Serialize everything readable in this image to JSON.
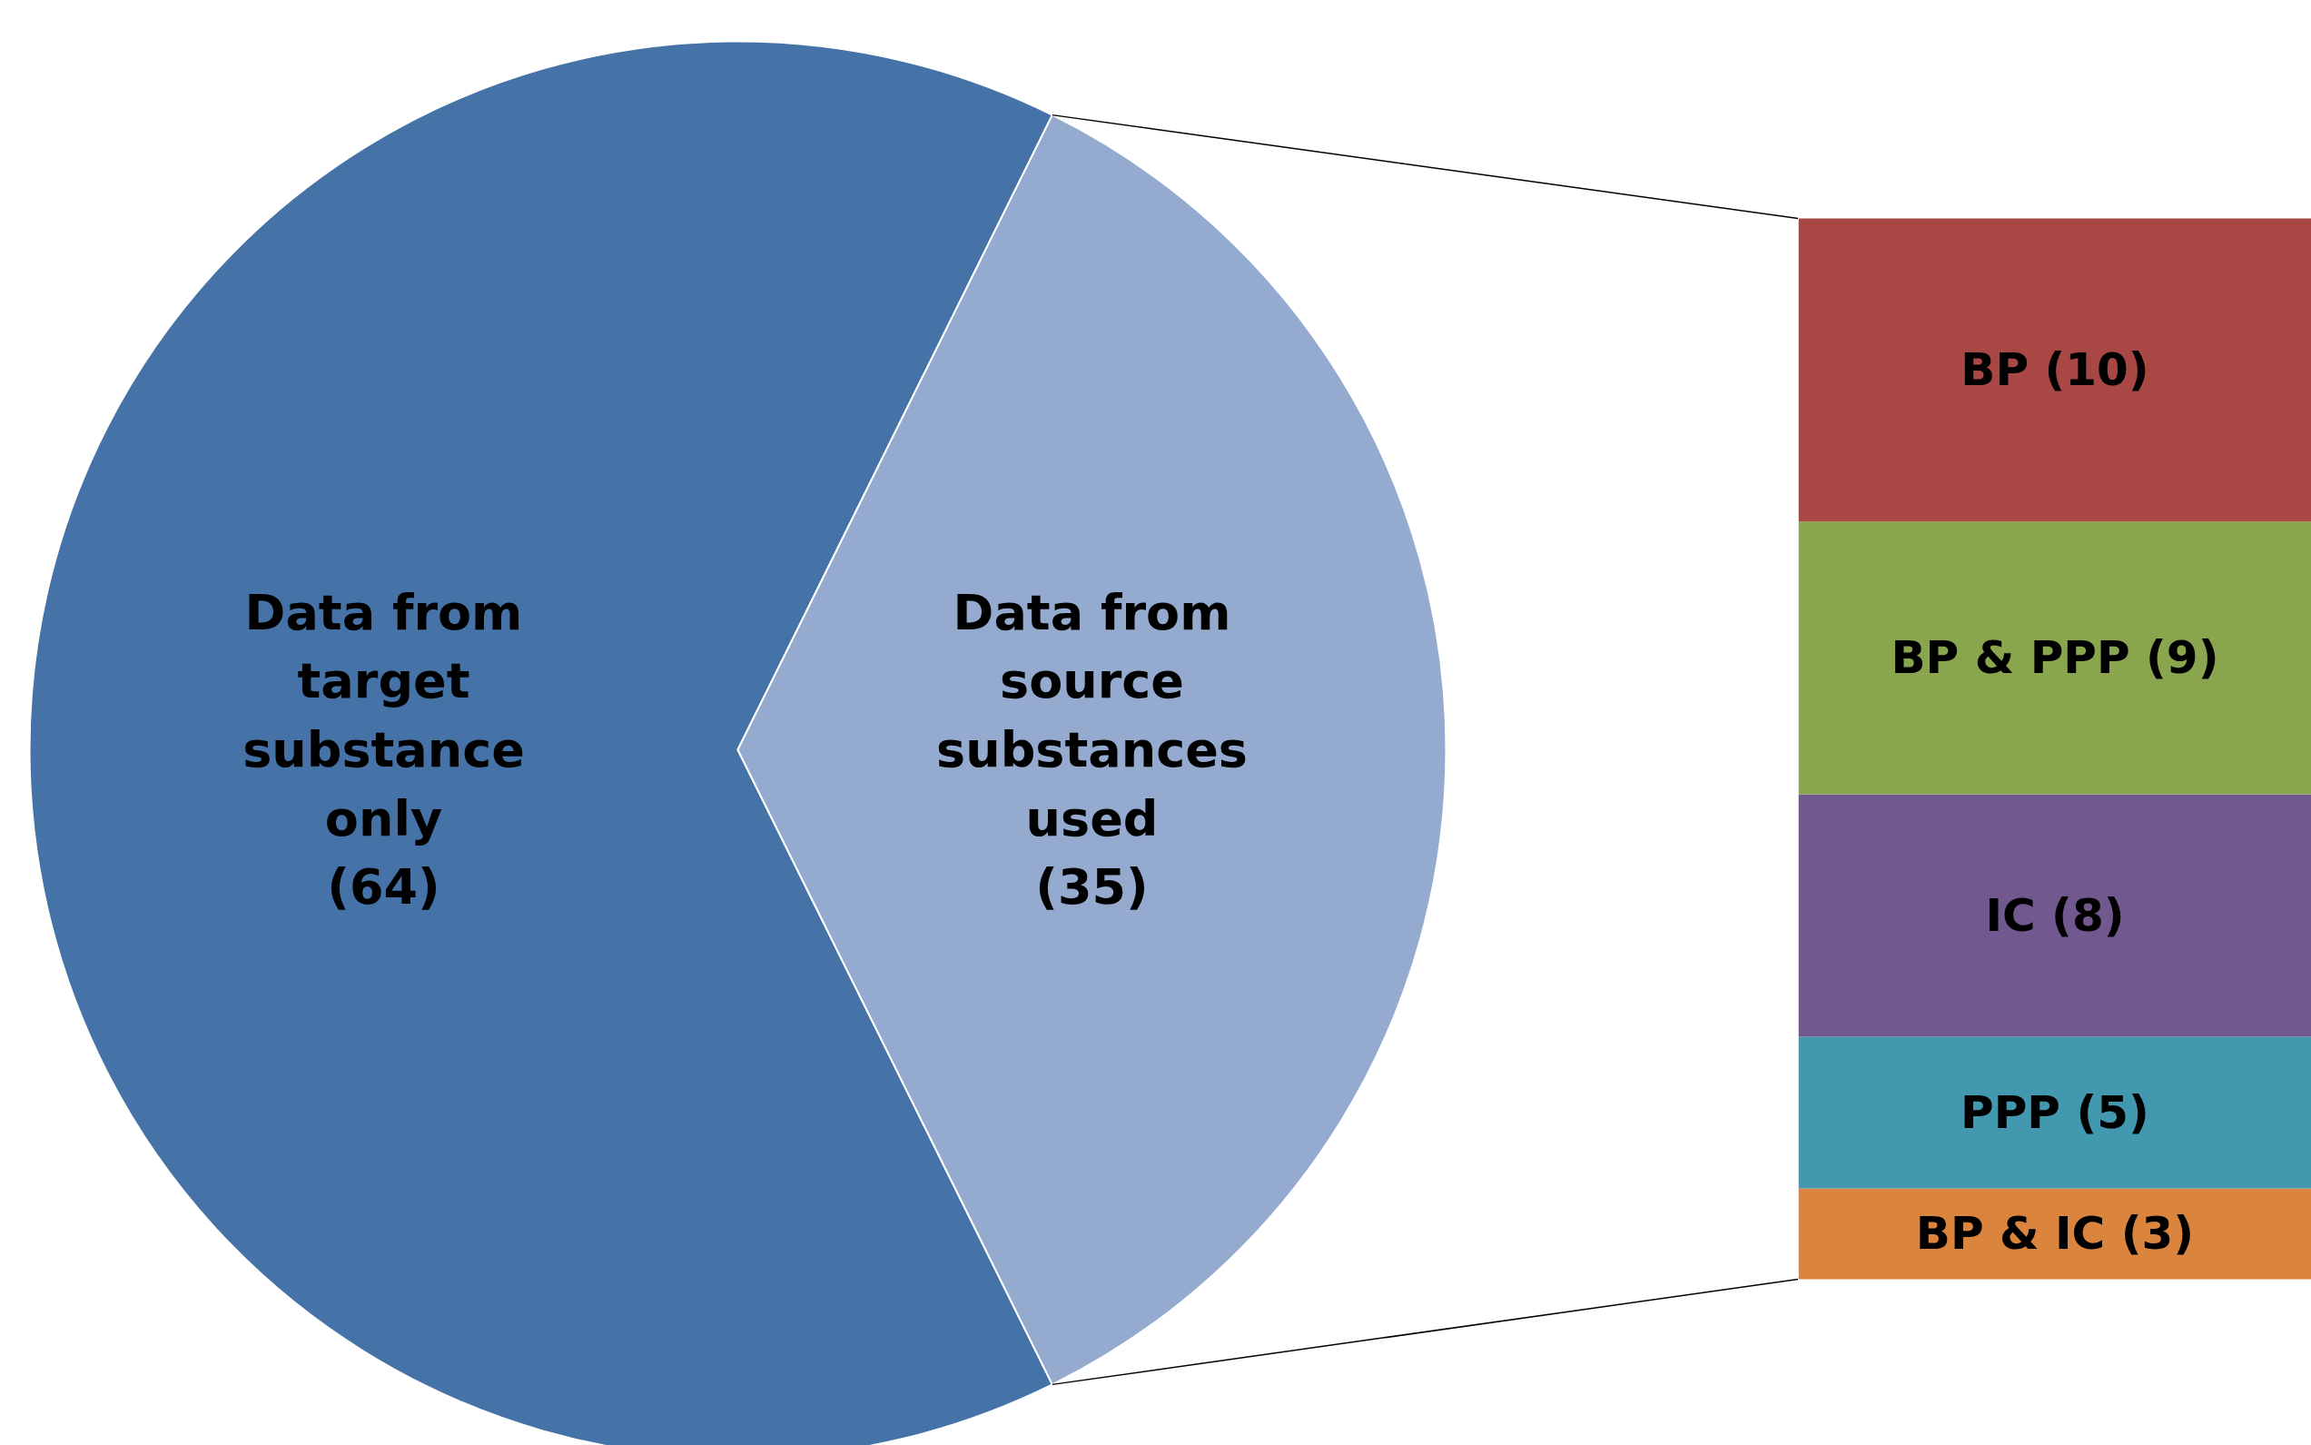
{
  "chart_data": [
    {
      "type": "pie",
      "categories": [
        "Data from\ntarget\nsubstance\nonly",
        "Data from\nsource\nsubstances\nused"
      ],
      "values": [
        64,
        35
      ],
      "colors": [
        "#4573a7",
        "#94aacf"
      ],
      "value_labels": [
        "(64)",
        "(35)"
      ]
    },
    {
      "type": "bar",
      "stacked": true,
      "categories": [
        null
      ],
      "series": [
        {
          "color": "#db843d",
          "values": [
            3
          ],
          "value_labels": [
            "BP & IC (3)"
          ]
        },
        {
          "color": "#4298af",
          "values": [
            5
          ],
          "value_labels": [
            "PPP (5)"
          ]
        },
        {
          "color": "#71588f",
          "values": [
            8
          ],
          "value_labels": [
            "IC (8)"
          ]
        },
        {
          "color": "#89a54e",
          "values": [
            9
          ],
          "value_labels": [
            "BP & PPP (9)"
          ]
        },
        {
          "color": "#a84744",
          "values": [
            10
          ],
          "value_labels": [
            "BP (10)"
          ]
        }
      ]
    }
  ]
}
